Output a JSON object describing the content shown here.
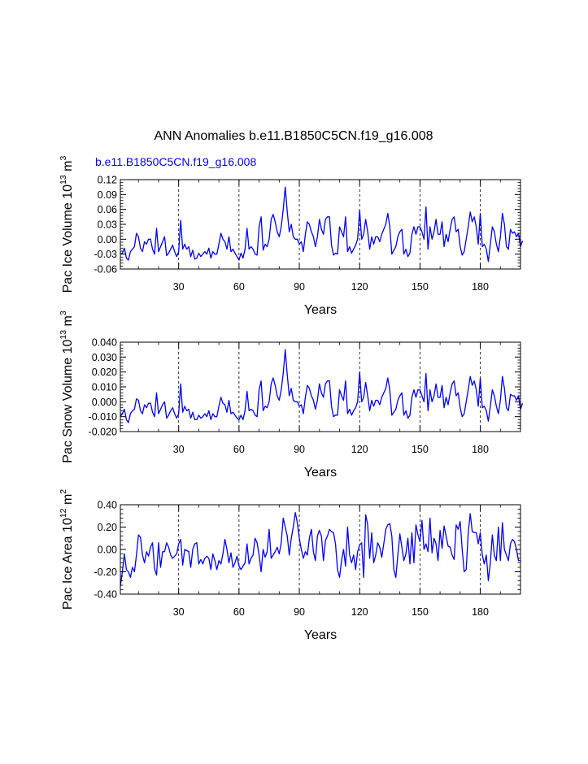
{
  "figure": {
    "title": "ANN Anomalies b.e11.B1850C5CN.f19_g16.008",
    "case_label": "b.e11.B1850C5CN.f19_g16.008",
    "case_label_color": "#0000ff",
    "line_color": "#0000ff",
    "axis_color": "#000000",
    "grid_color": "#000000"
  },
  "chart_data": [
    {
      "type": "line",
      "name": "pac-ice-volume",
      "ylabel_main": "Pac Ice Volume 10",
      "ylabel_exp": "13",
      "ylabel_unit": " m",
      "ylabel_unit_exp": "3",
      "xlabel": "Years",
      "xlim": [
        1,
        200
      ],
      "ylim": [
        -0.06,
        0.12
      ],
      "xticks": [
        30,
        60,
        90,
        120,
        150,
        180
      ],
      "xtick_labels": [
        "30",
        "60",
        "90",
        "120",
        "150",
        "180"
      ],
      "yticks": [
        -0.06,
        -0.03,
        0.0,
        0.03,
        0.06,
        0.09,
        0.12
      ],
      "ytick_labels": [
        "-0.06",
        "-0.03",
        "0.00",
        "0.03",
        "0.06",
        "0.09",
        "0.12"
      ],
      "vgrid": [
        30,
        60,
        90,
        120,
        150,
        180
      ],
      "series": [
        {
          "name": "b.e11.B1850C5CN.f19_g16.008",
          "x_start": 1,
          "y": [
            -0.03,
            -0.028,
            -0.018,
            -0.038,
            -0.042,
            -0.025,
            -0.02,
            -0.015,
            0.012,
            0.005,
            -0.018,
            -0.025,
            -0.005,
            -0.01,
            0.0,
            0.0,
            -0.02,
            -0.03,
            0.022,
            -0.025,
            -0.015,
            -0.005,
            0.005,
            -0.033,
            -0.028,
            -0.02,
            -0.012,
            -0.025,
            -0.035,
            -0.025,
            0.038,
            -0.02,
            -0.01,
            -0.02,
            -0.015,
            -0.035,
            -0.022,
            -0.04,
            -0.038,
            -0.028,
            -0.035,
            -0.03,
            -0.025,
            -0.03,
            -0.018,
            -0.038,
            -0.025,
            -0.03,
            -0.03,
            -0.01,
            0.012,
            0.0,
            -0.005,
            -0.02,
            0.005,
            -0.025,
            -0.02,
            -0.028,
            -0.035,
            -0.042,
            -0.028,
            -0.038,
            -0.02,
            0.022,
            -0.02,
            -0.015,
            -0.02,
            -0.03,
            -0.032,
            0.025,
            0.045,
            -0.022,
            -0.01,
            -0.015,
            0.0,
            0.04,
            0.05,
            0.035,
            0.015,
            0.005,
            0.025,
            0.06,
            0.105,
            0.055,
            0.015,
            0.03,
            0.005,
            0.0,
            0.0,
            -0.01,
            -0.005,
            -0.025,
            0.01,
            0.035,
            0.03,
            0.015,
            0.005,
            -0.015,
            0.005,
            0.04,
            0.02,
            0.01,
            0.04,
            0.045,
            0.045,
            -0.012,
            -0.032,
            -0.028,
            -0.03,
            0.025,
            0.015,
            0.005,
            0.045,
            -0.025,
            -0.015,
            -0.028,
            -0.02,
            -0.012,
            0.0,
            0.058,
            0.0,
            0.01,
            0.04,
            0.015,
            -0.02,
            0.005,
            -0.01,
            0.005,
            0.005,
            -0.005,
            0.01,
            0.02,
            0.03,
            0.052,
            0.025,
            -0.03,
            -0.022,
            -0.015,
            0.005,
            0.015,
            0.02,
            -0.03,
            -0.02,
            -0.035,
            -0.028,
            0.01,
            0.025,
            0.01,
            0.025,
            0.025,
            0.015,
            0.0,
            0.065,
            -0.02,
            0.025,
            0.0,
            0.015,
            0.04,
            0.01,
            0.01,
            0.035,
            -0.015,
            0.01,
            -0.005,
            0.02,
            0.04,
            0.045,
            0.015,
            0.02,
            -0.015,
            -0.032,
            -0.025,
            0.0,
            0.025,
            0.055,
            0.035,
            0.045,
            0.025,
            -0.01,
            0.052,
            -0.015,
            -0.01,
            -0.02,
            -0.045,
            -0.01,
            0.025,
            0.015,
            -0.01,
            -0.025,
            0.005,
            0.052,
            0.03,
            -0.015,
            -0.02,
            0.02,
            0.012,
            0.015,
            0.005,
            0.012,
            -0.015,
            -0.003
          ]
        }
      ]
    },
    {
      "type": "line",
      "name": "pac-snow-volume",
      "ylabel_main": "Pac Snow Volume 10",
      "ylabel_exp": "13",
      "ylabel_unit": " m",
      "ylabel_unit_exp": "3",
      "xlabel": "Years",
      "xlim": [
        1,
        200
      ],
      "ylim": [
        -0.02,
        0.04
      ],
      "xticks": [
        30,
        60,
        90,
        120,
        150,
        180
      ],
      "xtick_labels": [
        "30",
        "60",
        "90",
        "120",
        "150",
        "180"
      ],
      "yticks": [
        -0.02,
        -0.01,
        0.0,
        0.01,
        0.02,
        0.03,
        0.04
      ],
      "ytick_labels": [
        "-0.020",
        "-0.010",
        "0.000",
        "0.010",
        "0.020",
        "0.030",
        "0.040"
      ],
      "vgrid": [
        30,
        60,
        90,
        120,
        150,
        180
      ],
      "series": [
        {
          "name": "b.e11.B1850C5CN.f19_g16.008",
          "x_start": 1,
          "y": [
            -0.01,
            -0.008,
            -0.005,
            -0.012,
            -0.014,
            -0.008,
            -0.006,
            -0.005,
            0.002,
            0.001,
            -0.006,
            -0.008,
            -0.002,
            -0.004,
            -0.001,
            -0.001,
            -0.007,
            -0.01,
            0.006,
            -0.008,
            -0.005,
            -0.002,
            0.0,
            -0.011,
            -0.009,
            -0.006,
            -0.004,
            -0.008,
            -0.011,
            -0.008,
            0.012,
            -0.007,
            -0.003,
            -0.006,
            -0.005,
            -0.011,
            -0.007,
            -0.012,
            -0.012,
            -0.009,
            -0.011,
            -0.01,
            -0.008,
            -0.01,
            -0.006,
            -0.012,
            -0.008,
            -0.01,
            -0.01,
            -0.003,
            0.003,
            -0.001,
            -0.002,
            -0.007,
            0.001,
            -0.008,
            -0.007,
            -0.009,
            -0.011,
            -0.012,
            -0.009,
            -0.012,
            -0.006,
            0.007,
            -0.006,
            -0.005,
            -0.006,
            -0.009,
            -0.01,
            0.008,
            0.014,
            -0.006,
            -0.003,
            -0.004,
            0.0,
            0.012,
            0.016,
            0.011,
            0.004,
            0.001,
            0.008,
            0.019,
            0.035,
            0.018,
            0.004,
            0.009,
            0.001,
            0.0,
            0.0,
            -0.003,
            -0.002,
            -0.008,
            0.003,
            0.011,
            0.009,
            0.004,
            0.001,
            -0.005,
            0.001,
            0.012,
            0.006,
            0.003,
            0.012,
            0.014,
            0.014,
            -0.003,
            -0.01,
            -0.009,
            -0.009,
            0.008,
            0.004,
            0.001,
            0.014,
            -0.008,
            -0.005,
            -0.009,
            -0.006,
            -0.004,
            0.0,
            0.02,
            0.0,
            0.003,
            0.013,
            0.004,
            -0.006,
            0.001,
            -0.003,
            0.001,
            0.001,
            -0.002,
            0.003,
            0.006,
            0.009,
            0.016,
            0.008,
            -0.009,
            -0.007,
            -0.005,
            0.001,
            0.004,
            0.006,
            -0.009,
            -0.006,
            -0.011,
            -0.009,
            0.003,
            0.008,
            0.003,
            0.008,
            0.008,
            0.004,
            0.0,
            0.019,
            -0.006,
            0.008,
            0.0,
            0.004,
            0.012,
            0.003,
            0.003,
            0.011,
            -0.004,
            0.003,
            -0.002,
            0.006,
            0.012,
            0.014,
            0.004,
            0.006,
            -0.004,
            -0.01,
            -0.008,
            0.0,
            0.008,
            0.017,
            0.011,
            0.014,
            0.008,
            -0.003,
            0.016,
            -0.004,
            -0.003,
            -0.006,
            -0.013,
            -0.003,
            0.008,
            0.004,
            -0.003,
            -0.008,
            0.001,
            0.017,
            0.009,
            -0.004,
            -0.006,
            0.005,
            0.004,
            0.004,
            0.001,
            0.004,
            -0.005,
            -0.001
          ]
        }
      ]
    },
    {
      "type": "line",
      "name": "pac-ice-area",
      "ylabel_main": "Pac Ice Area 10",
      "ylabel_exp": "12",
      "ylabel_unit": " m",
      "ylabel_unit_exp": "2",
      "xlabel": "Years",
      "xlim": [
        1,
        200
      ],
      "ylim": [
        -0.4,
        0.4
      ],
      "xticks": [
        30,
        60,
        90,
        120,
        150,
        180
      ],
      "xtick_labels": [
        "30",
        "60",
        "90",
        "120",
        "150",
        "180"
      ],
      "yticks": [
        -0.4,
        -0.2,
        0.0,
        0.2,
        0.4
      ],
      "ytick_labels": [
        "-0.40",
        "-0.20",
        "0.00",
        "0.20",
        "0.40"
      ],
      "vgrid": [
        30,
        60,
        90,
        120,
        150,
        180
      ],
      "series": [
        {
          "name": "b.e11.B1850C5CN.f19_g16.008",
          "x_start": 1,
          "y": [
            -0.33,
            -0.2,
            -0.04,
            -0.18,
            -0.2,
            -0.25,
            -0.16,
            -0.2,
            -0.05,
            0.13,
            0.11,
            -0.05,
            -0.12,
            -0.02,
            -0.06,
            0.02,
            0.06,
            -0.17,
            -0.23,
            0.06,
            -0.16,
            -0.02,
            -0.02,
            0.06,
            0.02,
            -0.05,
            -0.08,
            -0.06,
            -0.04,
            0.05,
            0.09,
            -0.14,
            0.0,
            -0.01,
            -0.02,
            -0.16,
            0.0,
            0.05,
            0.06,
            -0.13,
            -0.09,
            -0.13,
            -0.08,
            -0.06,
            -0.08,
            -0.18,
            -0.04,
            -0.1,
            -0.18,
            -0.1,
            -0.13,
            -0.04,
            0.09,
            0.0,
            -0.12,
            -0.03,
            -0.16,
            -0.12,
            -0.06,
            -0.15,
            -0.18,
            -0.15,
            -0.12,
            0.05,
            -0.13,
            -0.08,
            -0.05,
            0.1,
            0.06,
            -0.05,
            -0.2,
            0.0,
            -0.07,
            -0.02,
            0.18,
            -0.08,
            -0.05,
            -0.02,
            0.02,
            -0.04,
            0.06,
            0.28,
            0.2,
            0.12,
            -0.05,
            0.1,
            0.2,
            0.33,
            0.24,
            0.1,
            0.0,
            -0.08,
            -0.02,
            -0.05,
            0.1,
            0.18,
            -0.02,
            -0.1,
            0.12,
            0.17,
            0.12,
            -0.1,
            0.08,
            0.12,
            0.18,
            0.16,
            0.15,
            0.05,
            -0.18,
            -0.25,
            -0.1,
            0.0,
            -0.15,
            0.2,
            -0.05,
            -0.12,
            -0.05,
            -0.18,
            -0.02,
            0.04,
            0.06,
            -0.25,
            0.31,
            0.22,
            -0.08,
            0.15,
            -0.12,
            -0.05,
            0.06,
            0.02,
            -0.07,
            0.05,
            0.18,
            0.22,
            0.23,
            0.12,
            -0.18,
            -0.25,
            -0.05,
            0.14,
            0.02,
            -0.1,
            -0.04,
            0.1,
            -0.13,
            0.15,
            -0.12,
            0.22,
            0.13,
            0.07,
            0.26,
            0.0,
            0.05,
            -0.02,
            0.28,
            -0.03,
            0.1,
            0.05,
            -0.1,
            0.17,
            0.01,
            0.21,
            0.12,
            0.03,
            0.02,
            -0.05,
            -0.09,
            0.22,
            0.18,
            0.25,
            0.0,
            -0.2,
            -0.18,
            0.15,
            0.32,
            0.16,
            0.15,
            0.15,
            0.05,
            0.15,
            -0.05,
            -0.13,
            -0.05,
            -0.28,
            -0.12,
            0.13,
            -0.05,
            -0.1,
            0.2,
            -0.1,
            0.24,
            0.0,
            -0.05,
            -0.1,
            0.05,
            0.09,
            0.07,
            0.0,
            -0.1,
            -0.1
          ]
        }
      ]
    }
  ]
}
